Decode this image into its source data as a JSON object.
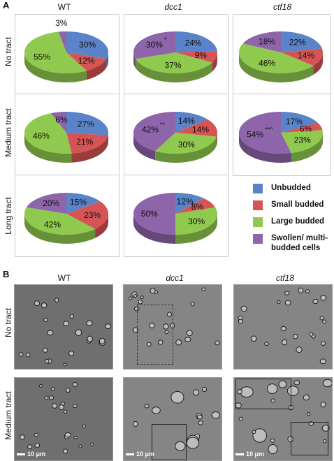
{
  "panel_a_label": "A",
  "panel_b_label": "B",
  "column_headers": [
    "WT",
    "dcc1",
    "ctf18"
  ],
  "row_headers": [
    "No tract",
    "Medium tract",
    "Long tract"
  ],
  "colors": {
    "unbudded": "#5b83c9",
    "small_budded": "#d65454",
    "large_budded": "#8fc94e",
    "swollen": "#8e64ab"
  },
  "legend": [
    {
      "label": "Unbudded",
      "color": "#5b83c9"
    },
    {
      "label": "Small budded",
      "color": "#d65454"
    },
    {
      "label": "Large budded",
      "color": "#8fc94e"
    },
    {
      "label": "Swollen/ multi-budded cells",
      "color": "#8e64ab"
    }
  ],
  "chart_data": [
    {
      "type": "pie",
      "strain": "WT",
      "condition": "No tract",
      "categories": [
        "Unbudded",
        "Small budded",
        "Large budded",
        "Swollen/ multi-budded cells"
      ],
      "values": [
        30,
        12,
        55,
        3
      ],
      "labels": [
        "30%",
        "12%",
        "55%",
        "3%"
      ]
    },
    {
      "type": "pie",
      "strain": "dcc1",
      "condition": "No tract",
      "categories": [
        "Unbudded",
        "Small budded",
        "Large budded",
        "Swollen/ multi-budded cells"
      ],
      "values": [
        24,
        9,
        37,
        30
      ],
      "labels": [
        "24%",
        "9%",
        "37%",
        "30%"
      ],
      "annotation": "*"
    },
    {
      "type": "pie",
      "strain": "ctf18",
      "condition": "No tract",
      "categories": [
        "Unbudded",
        "Small budded",
        "Large budded",
        "Swollen/ multi-budded cells"
      ],
      "values": [
        22,
        14,
        46,
        18
      ],
      "labels": [
        "22%",
        "14%",
        "46%",
        "18%"
      ]
    },
    {
      "type": "pie",
      "strain": "WT",
      "condition": "Medium tract",
      "categories": [
        "Unbudded",
        "Small budded",
        "Large budded",
        "Swollen/ multi-budded cells"
      ],
      "values": [
        27,
        21,
        46,
        6
      ],
      "labels": [
        "27%",
        "21%",
        "46%",
        "6%"
      ]
    },
    {
      "type": "pie",
      "strain": "dcc1",
      "condition": "Medium tract",
      "categories": [
        "Unbudded",
        "Small budded",
        "Large budded",
        "Swollen/ multi-budded cells"
      ],
      "values": [
        14,
        14,
        30,
        42
      ],
      "labels": [
        "14%",
        "14%",
        "30%",
        "42%"
      ],
      "annotation": "**"
    },
    {
      "type": "pie",
      "strain": "ctf18",
      "condition": "Medium tract",
      "categories": [
        "Unbudded",
        "Small budded",
        "Large budded",
        "Swollen/ multi-budded cells"
      ],
      "values": [
        17,
        6,
        23,
        54
      ],
      "labels": [
        "17%",
        "6%",
        "23%",
        "54%"
      ],
      "annotation": "**^"
    },
    {
      "type": "pie",
      "strain": "WT",
      "condition": "Long tract",
      "categories": [
        "Unbudded",
        "Small budded",
        "Large budded",
        "Swollen/ multi-budded cells"
      ],
      "values": [
        15,
        23,
        42,
        20
      ],
      "labels": [
        "15%",
        "23%",
        "42%",
        "20%"
      ]
    },
    {
      "type": "pie",
      "strain": "dcc1",
      "condition": "Long tract",
      "categories": [
        "Unbudded",
        "Small budded",
        "Large budded",
        "Swollen/ multi-budded cells"
      ],
      "values": [
        12,
        8,
        30,
        50
      ],
      "labels": [
        "12%",
        "8%",
        "30%",
        "50%"
      ]
    }
  ],
  "micrographs": {
    "column_headers": [
      "WT",
      "dcc1",
      "ctf18"
    ],
    "row_headers": [
      "No tract",
      "Medium tract"
    ],
    "scale_bar_label": "10 μm"
  }
}
